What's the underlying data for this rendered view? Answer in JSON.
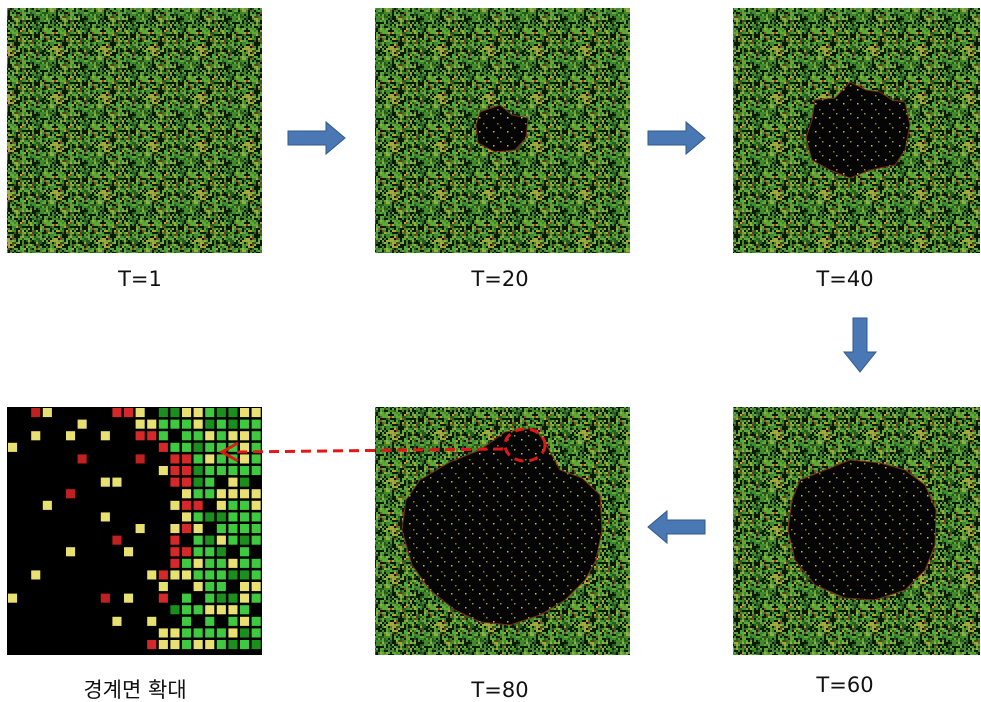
{
  "panels": [
    {
      "label": "T=1"
    },
    {
      "label": "T=20"
    },
    {
      "label": "T=40"
    },
    {
      "label": "T=60"
    },
    {
      "label": "T=80"
    },
    {
      "label": "경계면 확대"
    }
  ]
}
